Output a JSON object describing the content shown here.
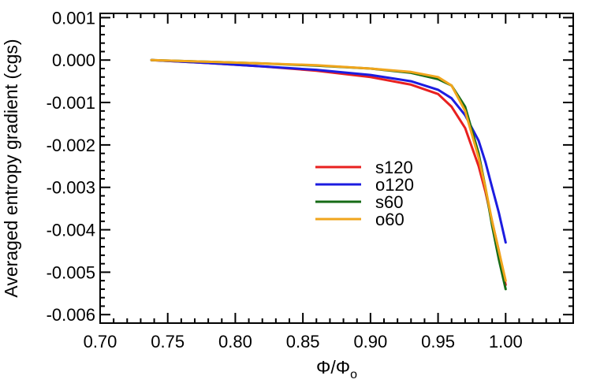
{
  "chart_data": {
    "type": "line",
    "title": "",
    "xlabel": "Φ/Φ",
    "xlabel_sub": "o",
    "ylabel": "Averaged entropy gradient (cgs)",
    "xlim": [
      0.7,
      1.05
    ],
    "ylim": [
      -0.0062,
      0.0011
    ],
    "xticks": [
      0.7,
      0.75,
      0.8,
      0.85,
      0.9,
      0.95,
      1.0
    ],
    "xtick_labels": [
      "0.70",
      "0.75",
      "0.80",
      "0.85",
      "0.90",
      "0.95",
      "1.00"
    ],
    "yticks": [
      0.001,
      0.0,
      -0.001,
      -0.002,
      -0.003,
      -0.004,
      -0.005,
      -0.006
    ],
    "ytick_labels": [
      "0.001",
      "0.000",
      "-0.001",
      "-0.002",
      "-0.003",
      "-0.004",
      "-0.005",
      "-0.006"
    ],
    "grid": false,
    "legend_position": "center",
    "series": [
      {
        "name": "s120",
        "color": "#e8201f",
        "x": [
          0.738,
          0.78,
          0.82,
          0.86,
          0.9,
          0.93,
          0.95,
          0.96,
          0.97,
          0.98,
          0.985,
          0.99,
          0.995,
          1.0
        ],
        "y": [
          0.0,
          -7e-05,
          -0.00015,
          -0.00025,
          -0.0004,
          -0.00058,
          -0.0008,
          -0.0011,
          -0.0016,
          -0.0025,
          -0.0031,
          -0.0038,
          -0.0045,
          -0.0053
        ]
      },
      {
        "name": "o120",
        "color": "#1c1ce0",
        "x": [
          0.738,
          0.78,
          0.82,
          0.86,
          0.9,
          0.93,
          0.95,
          0.96,
          0.97,
          0.98,
          0.985,
          0.99,
          0.995,
          1.0
        ],
        "y": [
          0.0,
          -7e-05,
          -0.00015,
          -0.00023,
          -0.00035,
          -0.0005,
          -0.0007,
          -0.0009,
          -0.0013,
          -0.0019,
          -0.0024,
          -0.003,
          -0.0036,
          -0.0043
        ]
      },
      {
        "name": "s60",
        "color": "#166b16",
        "x": [
          0.738,
          0.78,
          0.82,
          0.86,
          0.9,
          0.93,
          0.95,
          0.96,
          0.97,
          0.98,
          0.985,
          0.99,
          0.995,
          1.0
        ],
        "y": [
          0.0,
          -4e-05,
          -8e-05,
          -0.00013,
          -0.0002,
          -0.0003,
          -0.00045,
          -0.0006,
          -0.0011,
          -0.0022,
          -0.003,
          -0.0039,
          -0.0047,
          -0.0054
        ]
      },
      {
        "name": "o60",
        "color": "#f0a51c",
        "x": [
          0.738,
          0.78,
          0.82,
          0.86,
          0.9,
          0.93,
          0.95,
          0.96,
          0.97,
          0.98,
          0.985,
          0.99,
          0.995,
          1.0
        ],
        "y": [
          0.0,
          -4e-05,
          -8e-05,
          -0.00012,
          -0.0002,
          -0.00028,
          -0.0004,
          -0.0006,
          -0.0012,
          -0.0023,
          -0.003,
          -0.0038,
          -0.0045,
          -0.0052
        ]
      }
    ]
  }
}
